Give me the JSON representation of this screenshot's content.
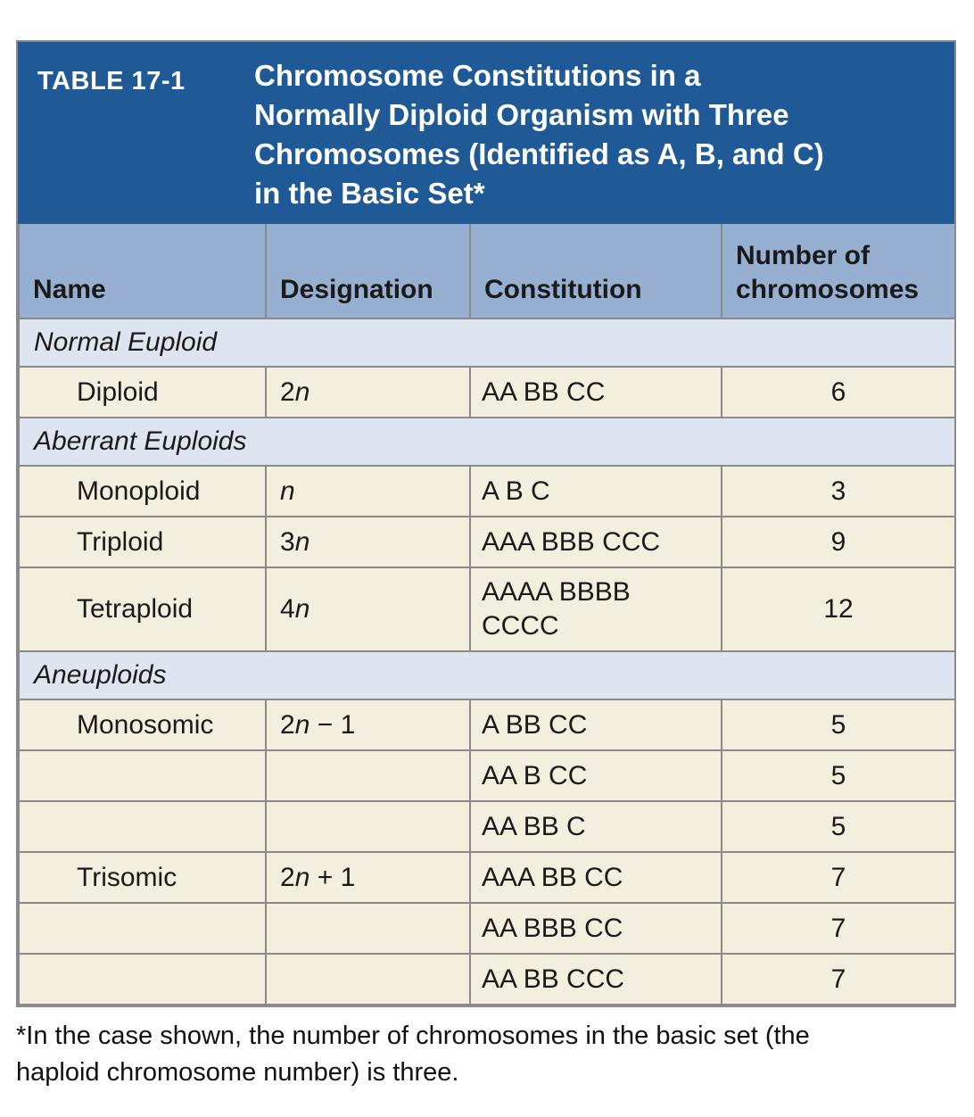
{
  "colors": {
    "banner_bg": "#205a96",
    "banner_text": "#ffffff",
    "column_header_bg": "#97b0d1",
    "section_row_bg": "#dee5f0",
    "data_row_bg": "#f2efde",
    "border": "#8a8a8a",
    "text": "#1a1a1a"
  },
  "table": {
    "label": "TABLE 17-1",
    "title_lines": [
      "Chromosome Constitutions in a",
      "Normally Diploid Organism with Three",
      "Chromosomes (Identified as A, B, and C)",
      "in the Basic Set*"
    ],
    "columns": [
      "Name",
      "Designation",
      "Constitution",
      "Number of chromosomes"
    ],
    "rows": [
      {
        "type": "section",
        "label": "Normal Euploid"
      },
      {
        "type": "data",
        "name": "Diploid",
        "desig": {
          "pre": "2",
          "n": "n",
          "post": ""
        },
        "constitution": "AA BB CC",
        "number": "6"
      },
      {
        "type": "section",
        "label": "Aberrant Euploids"
      },
      {
        "type": "data",
        "name": "Monoploid",
        "desig": {
          "pre": "",
          "n": "n",
          "post": ""
        },
        "constitution": "A B C",
        "number": "3"
      },
      {
        "type": "data",
        "name": "Triploid",
        "desig": {
          "pre": "3",
          "n": "n",
          "post": ""
        },
        "constitution": "AAA BBB CCC",
        "number": "9"
      },
      {
        "type": "data",
        "name": "Tetraploid",
        "desig": {
          "pre": "4",
          "n": "n",
          "post": ""
        },
        "constitution": "AAAA BBBB CCCC",
        "number": "12"
      },
      {
        "type": "section",
        "label": "Aneuploids"
      },
      {
        "type": "data",
        "name": "Monosomic",
        "desig": {
          "pre": "2",
          "n": "n",
          "post": " − 1"
        },
        "constitution": "A BB CC",
        "number": "5"
      },
      {
        "type": "data",
        "name": "",
        "constitution": "AA B CC",
        "number": "5"
      },
      {
        "type": "data",
        "name": "",
        "constitution": "AA BB C",
        "number": "5"
      },
      {
        "type": "data",
        "name": "Trisomic",
        "desig": {
          "pre": "2",
          "n": "n",
          "post": " + 1"
        },
        "constitution": "AAA BB CC",
        "number": "7"
      },
      {
        "type": "data",
        "name": "",
        "constitution": "AA BBB CC",
        "number": "7"
      },
      {
        "type": "data",
        "name": "",
        "constitution": "AA BB CCC",
        "number": "7"
      }
    ]
  },
  "footnote_lines": [
    "*In the case shown, the number of chromosomes in the basic set (the",
    "haploid chromosome number) is three."
  ]
}
